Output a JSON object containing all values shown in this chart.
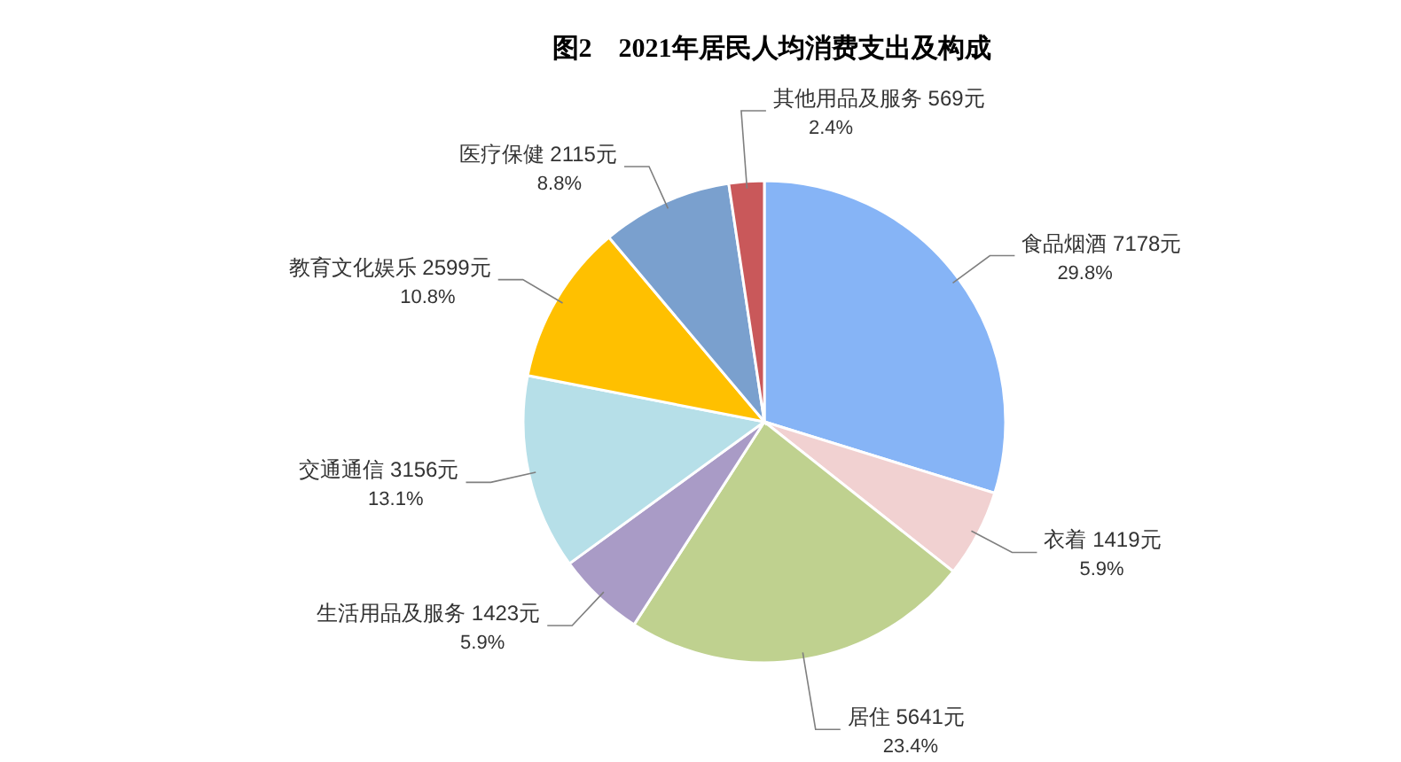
{
  "chart_data": {
    "type": "pie",
    "title": "图2　2021年居民人均消费支出及构成",
    "categories": [
      "食品烟酒",
      "衣着",
      "居住",
      "生活用品及服务",
      "交通通信",
      "教育文化娱乐",
      "医疗保健",
      "其他用品及服务"
    ],
    "values": [
      7178,
      1419,
      5641,
      1423,
      3156,
      2599,
      2115,
      569
    ],
    "value_labels": [
      "7178元\n29.8%",
      "1419元\n5.9%",
      "5641元\n23.4%",
      "1423元\n5.9%",
      "3156元\n13.1%",
      "2599元\n10.8%",
      "2115元\n8.8%",
      "569元\n2.4%"
    ],
    "colors": [
      "#86b4f6",
      "#f1d1d1",
      "#bfd18f",
      "#a99bc6",
      "#b6dfe8",
      "#ffc000",
      "#7aa0ce",
      "#c9585a"
    ]
  }
}
